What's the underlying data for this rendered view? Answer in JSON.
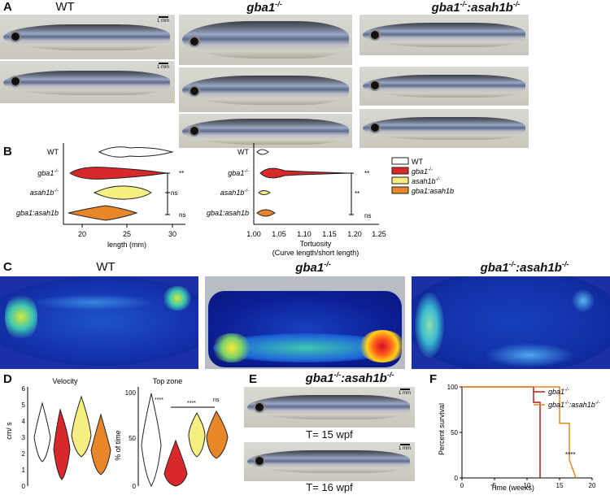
{
  "panels": {
    "A": "A",
    "B": "B",
    "C": "C",
    "D": "D",
    "E": "E",
    "F": "F"
  },
  "genotypes": {
    "wt": "WT",
    "gba1": "gba1",
    "gba1_sup": "-/-",
    "asah1b": "asah1b",
    "double_a": "gba1",
    "double_b": ":asah1b"
  },
  "scale_bar": "1 mm",
  "panelB": {
    "rows": [
      "WT",
      "gba1",
      "asah1b",
      "gba1:asah1b"
    ],
    "length": {
      "xlabel": "length (mm)",
      "ticks": [
        "20",
        "25",
        "30"
      ],
      "sig": [
        "**",
        "ns",
        "ns"
      ]
    },
    "tortuosity": {
      "xlabel": "Tortuosity",
      "xlabel2": "(Curve length/short length)",
      "ticks": [
        "1.00",
        "1.05",
        "1.10",
        "1.15",
        "1.20",
        "1.25"
      ],
      "sig": [
        "**",
        "**",
        "ns"
      ]
    },
    "legend": [
      "WT",
      "gba1",
      "asah1b",
      "gba1:asah1b"
    ]
  },
  "panelD": {
    "velocity_title": "Velocity",
    "velocity_ylabel": "cm/ s",
    "velocity_ticks": [
      "0",
      "1",
      "2",
      "3",
      "4",
      "5",
      "6"
    ],
    "top_title": "Top zone",
    "top_ylabel": "% of time",
    "top_ticks": [
      "0",
      "50",
      "100"
    ],
    "sig1": "****",
    "sig2": "ns",
    "sig3": "****"
  },
  "panelE": {
    "t1": "T= 15 wpf",
    "t2": "T= 16 wpf"
  },
  "chart_data": {
    "type": "line",
    "title": "",
    "xlabel": "Time (weeks)",
    "ylabel": "Percent survival",
    "xlim": [
      0,
      20
    ],
    "ylim": [
      0,
      100
    ],
    "xticks": [
      "0",
      "5",
      "10",
      "15",
      "20"
    ],
    "yticks": [
      "0",
      "50",
      "100"
    ],
    "series": [
      {
        "name": "gba1-/-",
        "color": "#b01e1e",
        "x": [
          0,
          11,
          11,
          12,
          12
        ],
        "y": [
          100,
          100,
          83,
          83,
          0
        ]
      },
      {
        "name": "gba1-/-:asah1b-/-",
        "color": "#e08a1e",
        "x": [
          0,
          15,
          15,
          16.5,
          16.5,
          17.5
        ],
        "y": [
          100,
          100,
          60,
          60,
          20,
          0
        ]
      }
    ],
    "annotation": "****",
    "legend": "top-right"
  },
  "colors": {
    "wt": "#ffffff",
    "gba1": "#d8282b",
    "asah1b": "#f7ee82",
    "double": "#e8862a"
  }
}
